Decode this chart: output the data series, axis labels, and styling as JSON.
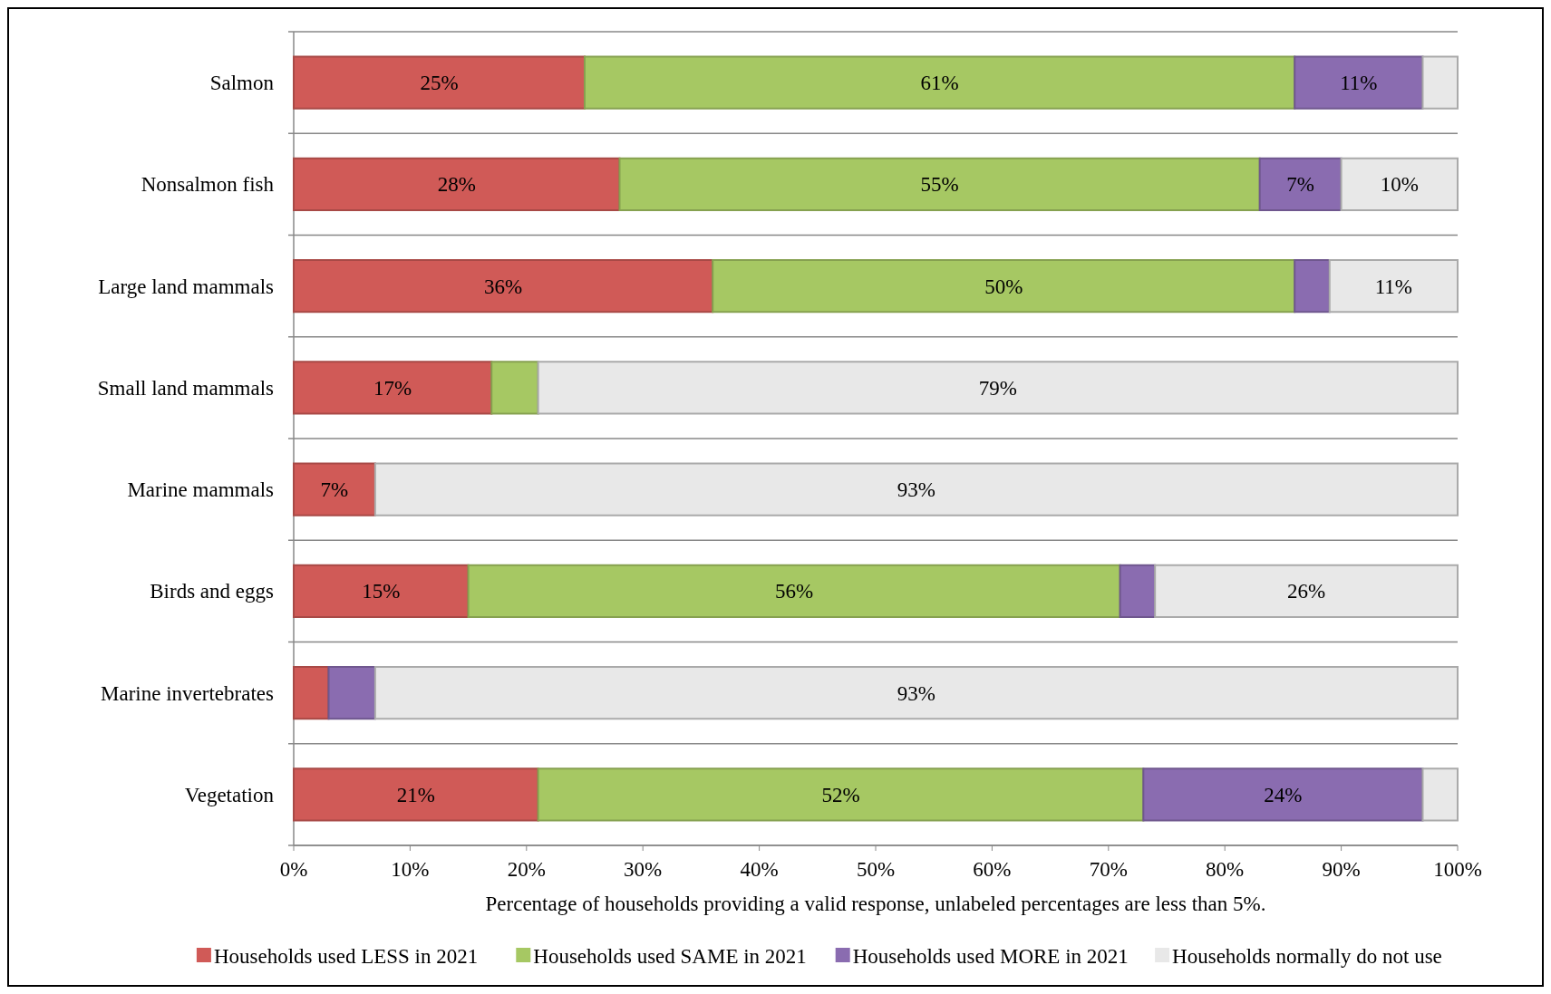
{
  "chart_data": {
    "type": "bar",
    "orientation": "horizontal",
    "stacked": true,
    "categories": [
      "Salmon",
      "Nonsalmon fish",
      "Large land mammals",
      "Small land mammals",
      "Marine mammals",
      "Birds and eggs",
      "Marine invertebrates",
      "Vegetation"
    ],
    "series": [
      {
        "name": "Households used LESS in 2021",
        "color": "#d05a57",
        "values": [
          25,
          28,
          36,
          17,
          7,
          15,
          3,
          21
        ],
        "value_labels": [
          "25%",
          "28%",
          "36%",
          "17%",
          "7%",
          "15%",
          null,
          "21%"
        ]
      },
      {
        "name": "Households used SAME in 2021",
        "color": "#a6c863",
        "values": [
          61,
          55,
          50,
          4,
          0,
          56,
          0,
          52
        ],
        "value_labels": [
          "61%",
          "55%",
          "50%",
          null,
          null,
          "56%",
          null,
          "52%"
        ]
      },
      {
        "name": "Households used MORE in 2021",
        "color": "#8a6cb0",
        "values": [
          11,
          7,
          3,
          0,
          0,
          3,
          4,
          24
        ],
        "value_labels": [
          "11%",
          "7%",
          null,
          null,
          null,
          null,
          null,
          "24%"
        ]
      },
      {
        "name": "Households normally do not use",
        "color": "#e8e8e8",
        "values": [
          3,
          10,
          11,
          79,
          93,
          26,
          93,
          3
        ],
        "value_labels": [
          null,
          "10%",
          "11%",
          "79%",
          "93%",
          "26%",
          "93%",
          null
        ]
      }
    ],
    "xlim": [
      0,
      100
    ],
    "xticks": [
      {
        "value": 0,
        "label": "0%"
      },
      {
        "value": 10,
        "label": "10%"
      },
      {
        "value": 20,
        "label": "20%"
      },
      {
        "value": 30,
        "label": "30%"
      },
      {
        "value": 40,
        "label": "40%"
      },
      {
        "value": 50,
        "label": "50%"
      },
      {
        "value": 60,
        "label": "60%"
      },
      {
        "value": 70,
        "label": "70%"
      },
      {
        "value": 80,
        "label": "80%"
      },
      {
        "value": 90,
        "label": "90%"
      },
      {
        "value": 100,
        "label": "100%"
      }
    ],
    "xlabel": "Percentage of households providing a valid response, unlabeled percentages are less than 5%.",
    "grid": "y",
    "legend": "bottom"
  }
}
